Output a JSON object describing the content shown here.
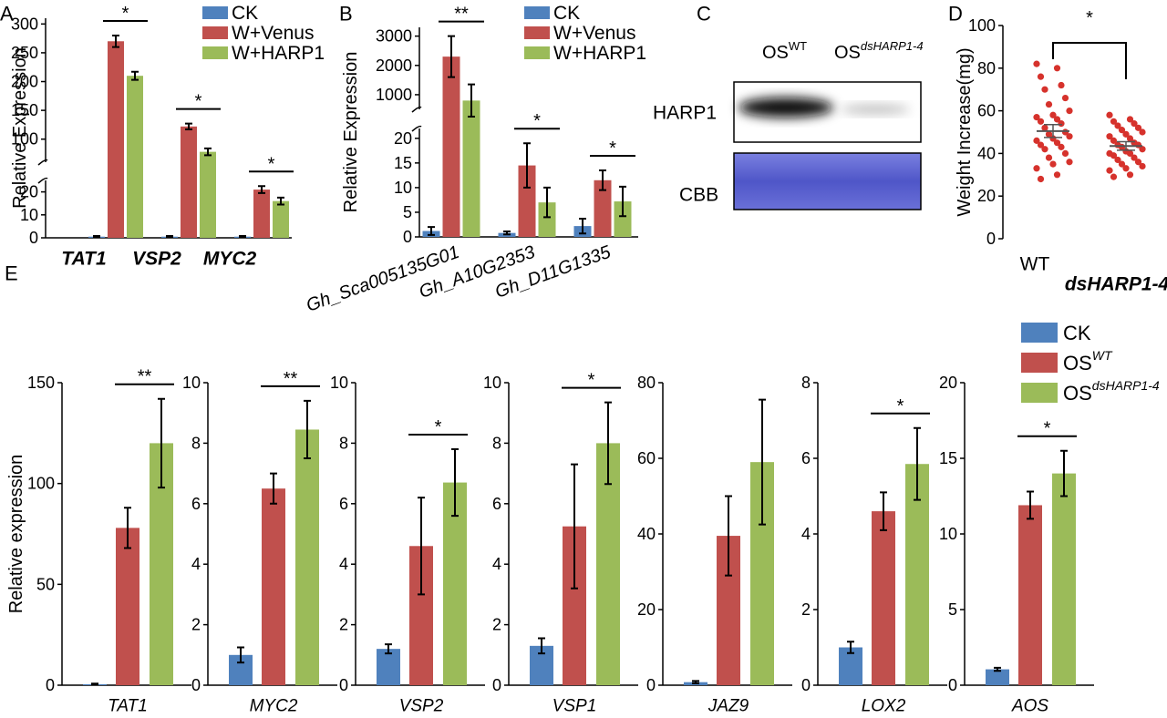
{
  "chart_data": [
    {
      "type": "bar",
      "label": "A",
      "ylabel": "Relative Expression",
      "categories": [
        "TAT1",
        "VSP2",
        "MYC2"
      ],
      "series": [
        {
          "name": "CK",
          "color": "#4f81bd",
          "values": [
            0.5,
            0.5,
            0.5
          ],
          "errors": [
            0.3,
            0.3,
            0.3
          ]
        },
        {
          "name": "W+Venus",
          "color": "#c0504d",
          "values": [
            270,
            122,
            21
          ],
          "errors": [
            10,
            5,
            1.5
          ]
        },
        {
          "name": "W+HARP1",
          "color": "#9bbb59",
          "values": [
            210,
            78,
            16
          ],
          "errors": [
            7,
            6,
            1.5
          ]
        }
      ],
      "ylim": [
        0,
        310
      ],
      "ybreak": [
        25,
        60
      ],
      "yticks": [
        0,
        10,
        20,
        100,
        150,
        200,
        250,
        300
      ],
      "significance": [
        "*",
        "*",
        "*"
      ]
    },
    {
      "type": "bar",
      "label": "B",
      "ylabel": "Relative Expression",
      "categories": [
        "Gh_Sca005135G01",
        "Gh_A10G2353",
        "Gh_D11G1335"
      ],
      "series": [
        {
          "name": "CK",
          "color": "#4f81bd",
          "values": [
            1.2,
            0.8,
            2.2
          ],
          "errors": [
            0.8,
            0.3,
            1.5
          ]
        },
        {
          "name": "W+Venus",
          "color": "#c0504d",
          "values": [
            2300,
            14.5,
            11.5
          ],
          "errors": [
            700,
            4.5,
            2
          ]
        },
        {
          "name": "W+HARP1",
          "color": "#9bbb59",
          "values": [
            800,
            7,
            7.2
          ],
          "errors": [
            550,
            3,
            3
          ]
        }
      ],
      "ylim": [
        0,
        3300
      ],
      "ybreak": [
        22,
        500
      ],
      "yticks": [
        0,
        5,
        10,
        15,
        20,
        1000,
        2000,
        3000
      ],
      "significance": [
        "**",
        "*",
        "*"
      ]
    },
    {
      "type": "strip",
      "label": "D",
      "ylabel": "Weight Increase(mg)",
      "categories": [
        "WT",
        "dsHARP1-4"
      ],
      "color": "#d6322c",
      "points": [
        [
          82,
          80,
          76,
          72,
          70,
          66,
          63,
          60,
          58,
          57,
          56,
          55,
          54,
          52,
          50,
          49,
          48,
          47,
          46,
          45,
          44,
          43,
          42,
          40,
          38,
          36,
          35,
          33,
          30,
          28
        ],
        [
          58,
          56,
          55,
          54,
          53,
          52,
          51,
          50,
          49,
          48,
          47,
          46,
          45,
          44,
          44,
          43,
          42,
          41,
          40,
          40,
          39,
          38,
          37,
          36,
          35,
          34,
          33,
          32,
          30,
          29
        ]
      ],
      "mean": [
        50.5,
        43.5
      ],
      "sem": [
        3,
        2
      ],
      "ylim": [
        0,
        100
      ],
      "yticks": [
        0,
        20,
        40,
        60,
        80,
        100
      ],
      "significance": "*"
    },
    {
      "type": "bar",
      "label": "E",
      "ylabel": "Relative expression",
      "categories": [
        "TAT1"
      ],
      "series": [
        {
          "name": "CK",
          "color": "#4f81bd",
          "values": [
            0.5
          ],
          "errors": [
            0.3
          ]
        },
        {
          "name": "OS",
          "name_sup": "WT",
          "color": "#c0504d",
          "values": [
            78
          ],
          "errors": [
            10
          ]
        },
        {
          "name": "OS",
          "name_sup": "dsHARP1-4",
          "color": "#9bbb59",
          "values": [
            120
          ],
          "errors": [
            22
          ]
        }
      ],
      "ylim": [
        0,
        150
      ],
      "yticks": [
        0,
        50,
        100,
        150
      ],
      "significance": [
        "**"
      ]
    },
    {
      "type": "bar",
      "categories": [
        "MYC2"
      ],
      "series": [
        {
          "color": "#4f81bd",
          "values": [
            1.0
          ],
          "errors": [
            0.25
          ]
        },
        {
          "color": "#c0504d",
          "values": [
            6.5
          ],
          "errors": [
            0.5
          ]
        },
        {
          "color": "#9bbb59",
          "values": [
            8.45
          ],
          "errors": [
            0.95
          ]
        }
      ],
      "ylim": [
        0,
        10
      ],
      "yticks": [
        0,
        2,
        4,
        6,
        8,
        10
      ],
      "significance": [
        "**"
      ]
    },
    {
      "type": "bar",
      "categories": [
        "VSP2"
      ],
      "series": [
        {
          "color": "#4f81bd",
          "values": [
            1.2
          ],
          "errors": [
            0.15
          ]
        },
        {
          "color": "#c0504d",
          "values": [
            4.6
          ],
          "errors": [
            1.6
          ]
        },
        {
          "color": "#9bbb59",
          "values": [
            6.7
          ],
          "errors": [
            1.1
          ]
        }
      ],
      "ylim": [
        0,
        10
      ],
      "yticks": [
        0,
        2,
        4,
        6,
        8,
        10
      ],
      "significance": [
        "*"
      ]
    },
    {
      "type": "bar",
      "categories": [
        "VSP1"
      ],
      "series": [
        {
          "color": "#4f81bd",
          "values": [
            1.3
          ],
          "errors": [
            0.25
          ]
        },
        {
          "color": "#c0504d",
          "values": [
            5.25
          ],
          "errors": [
            2.05
          ]
        },
        {
          "color": "#9bbb59",
          "values": [
            8.0
          ],
          "errors": [
            1.35
          ]
        }
      ],
      "ylim": [
        0,
        10
      ],
      "yticks": [
        0,
        2,
        4,
        6,
        8,
        10
      ],
      "significance": [
        "*"
      ]
    },
    {
      "type": "bar",
      "categories": [
        "JAZ9"
      ],
      "series": [
        {
          "color": "#4f81bd",
          "values": [
            0.8
          ],
          "errors": [
            0.3
          ]
        },
        {
          "color": "#c0504d",
          "values": [
            39.5
          ],
          "errors": [
            10.5
          ]
        },
        {
          "color": "#9bbb59",
          "values": [
            59
          ],
          "errors": [
            16.5
          ]
        }
      ],
      "ylim": [
        0,
        80
      ],
      "yticks": [
        0,
        20,
        40,
        60,
        80
      ]
    },
    {
      "type": "bar",
      "categories": [
        "LOX2"
      ],
      "series": [
        {
          "color": "#4f81bd",
          "values": [
            1.0
          ],
          "errors": [
            0.15
          ]
        },
        {
          "color": "#c0504d",
          "values": [
            4.6
          ],
          "errors": [
            0.5
          ]
        },
        {
          "color": "#9bbb59",
          "values": [
            5.85
          ],
          "errors": [
            0.95
          ]
        }
      ],
      "ylim": [
        0,
        8
      ],
      "yticks": [
        0,
        2,
        4,
        6,
        8
      ],
      "significance": [
        "*"
      ]
    },
    {
      "type": "bar",
      "categories": [
        "AOS"
      ],
      "series": [
        {
          "color": "#4f81bd",
          "values": [
            1.05
          ],
          "errors": [
            0.1
          ]
        },
        {
          "color": "#c0504d",
          "values": [
            11.9
          ],
          "errors": [
            0.9
          ]
        },
        {
          "color": "#9bbb59",
          "values": [
            14
          ],
          "errors": [
            1.5
          ]
        }
      ],
      "ylim": [
        0,
        20
      ],
      "yticks": [
        0,
        5,
        10,
        15,
        20
      ],
      "significance": [
        "*"
      ]
    }
  ],
  "blot": {
    "label": "C",
    "lanes": [
      {
        "name": "OS",
        "sup": "WT"
      },
      {
        "name": "OS",
        "sup": "dsHARP1-4"
      }
    ],
    "rows": [
      "HARP1",
      "CBB"
    ]
  }
}
